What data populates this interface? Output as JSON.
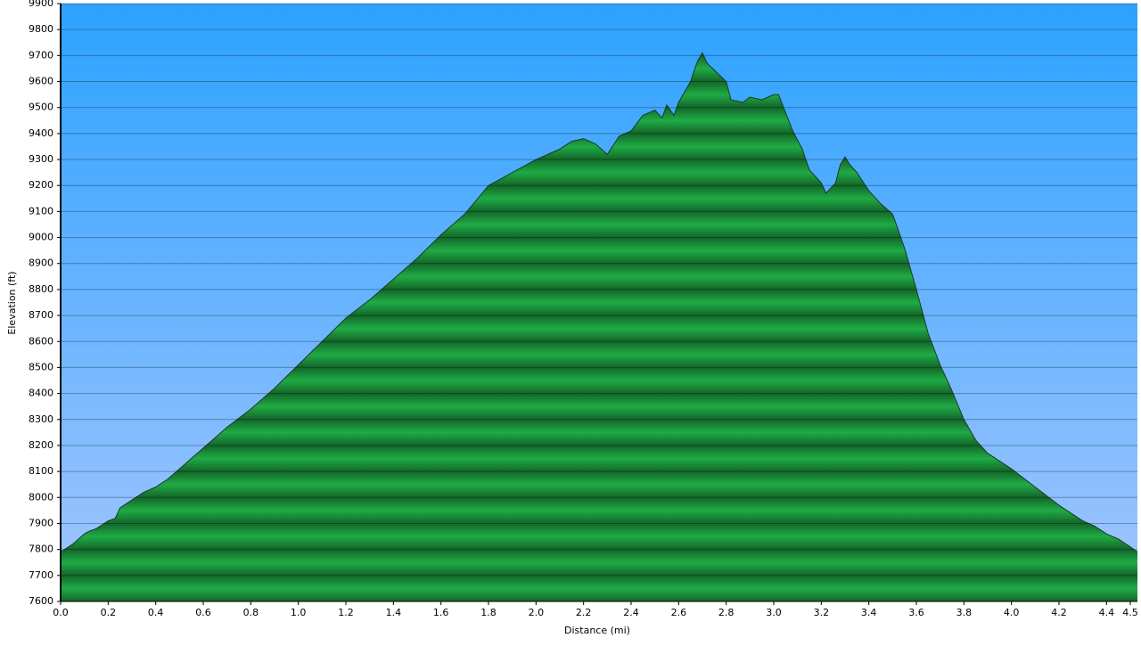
{
  "chart_data": {
    "type": "area",
    "y_label": "Elevation (ft)",
    "x_label": "Distance   (mi)",
    "color": "#1fab45",
    "line_color": "#1a3a22",
    "grid": true,
    "x": [
      0,
      0.05,
      0.1,
      0.12,
      0.15,
      0.2,
      0.23,
      0.25,
      0.3,
      0.35,
      0.4,
      0.45,
      0.5,
      0.55,
      0.6,
      0.65,
      0.7,
      0.8,
      0.9,
      1.0,
      1.1,
      1.2,
      1.3,
      1.4,
      1.5,
      1.6,
      1.7,
      1.8,
      1.9,
      2.0,
      2.1,
      2.15,
      2.2,
      2.25,
      2.3,
      2.35,
      2.4,
      2.45,
      2.5,
      2.53,
      2.55,
      2.58,
      2.6,
      2.65,
      2.68,
      2.7,
      2.72,
      2.8,
      2.82,
      2.87,
      2.9,
      2.95,
      3.0,
      3.02,
      3.05,
      3.08,
      3.12,
      3.15,
      3.2,
      3.22,
      3.26,
      3.28,
      3.3,
      3.32,
      3.35,
      3.4,
      3.45,
      3.5,
      3.55,
      3.6,
      3.65,
      3.7,
      3.75,
      3.8,
      3.85,
      3.9,
      4.0,
      4.1,
      4.2,
      4.3,
      4.35,
      4.4,
      4.45,
      4.5,
      4.53
    ],
    "values": [
      7790,
      7820,
      7860,
      7870,
      7880,
      7910,
      7920,
      7960,
      7990,
      8020,
      8040,
      8070,
      8110,
      8150,
      8190,
      8230,
      8270,
      8340,
      8420,
      8510,
      8600,
      8690,
      8760,
      8840,
      8920,
      9010,
      9090,
      9200,
      9250,
      9300,
      9340,
      9370,
      9380,
      9360,
      9320,
      9390,
      9410,
      9470,
      9490,
      9460,
      9510,
      9470,
      9520,
      9600,
      9680,
      9710,
      9670,
      9600,
      9530,
      9520,
      9540,
      9530,
      9550,
      9550,
      9480,
      9410,
      9340,
      9260,
      9210,
      9170,
      9210,
      9280,
      9310,
      9280,
      9250,
      9180,
      9130,
      9090,
      8960,
      8800,
      8630,
      8510,
      8410,
      8300,
      8220,
      8170,
      8110,
      8040,
      7970,
      7910,
      7890,
      7860,
      7840,
      7810,
      7790
    ],
    "xlim": [
      0,
      4.53
    ],
    "xticks": [
      {
        "value": 0,
        "label": "0.0"
      },
      0.2,
      0.4,
      0.6,
      0.8,
      {
        "value": 1,
        "label": "1.0"
      },
      1.2,
      1.4,
      1.6,
      1.8,
      {
        "value": 2,
        "label": "2.0"
      },
      2.2,
      2.4,
      2.6,
      2.8,
      {
        "value": 3,
        "label": "3.0"
      },
      3.2,
      3.4,
      3.6,
      3.8,
      {
        "value": 4,
        "label": "4.0"
      },
      4.2,
      4.4,
      4.5
    ],
    "ylim": [
      7600,
      9900
    ],
    "yticks": [
      7600,
      7700,
      7800,
      7900,
      8000,
      8100,
      8200,
      8300,
      8400,
      8500,
      8600,
      8700,
      8800,
      8900,
      9000,
      9100,
      9200,
      9300,
      9400,
      9500,
      9600,
      9700,
      9800,
      9900
    ]
  }
}
